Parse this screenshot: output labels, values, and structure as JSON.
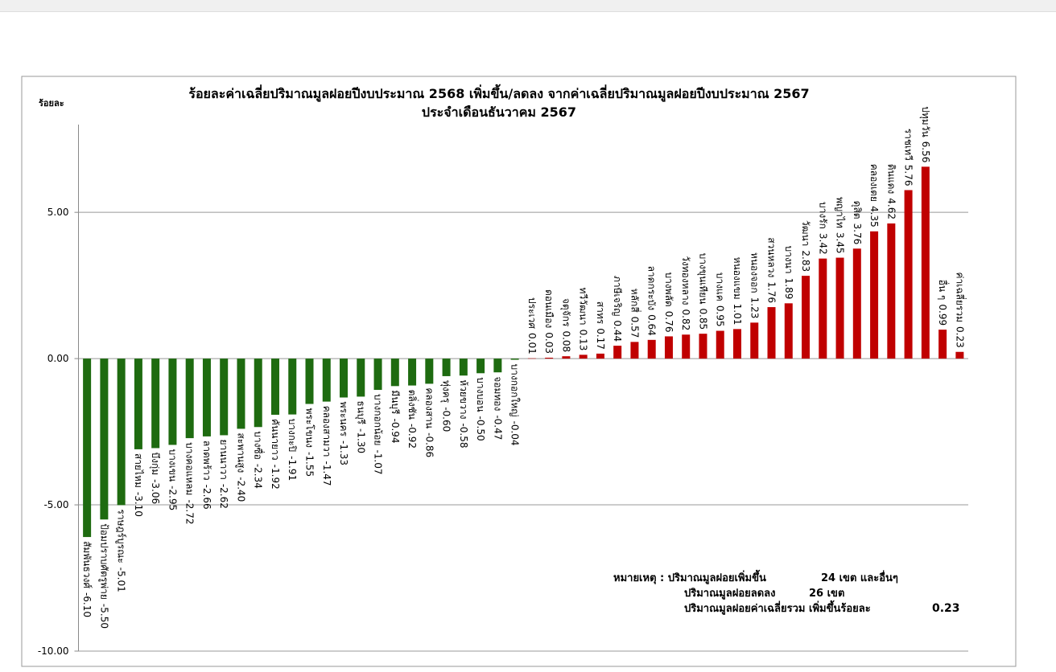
{
  "chart_data": {
    "type": "bar",
    "title": "ร้อยละค่าเฉลี่ยปริมาณมูลฝอยปีงบประมาณ 2568 เพิ่มขึ้น/ลดลง จากค่าเฉลี่ยปริมาณมูลฝอยปีงบประมาณ 2567",
    "subtitle": "ประจำเดือนธันวาคม 2567",
    "y_label": "ร้อยละ",
    "categories": [
      "สัมพันธวงศ์",
      "ป้อมปราบศัตรูพ่าย",
      "ราษฎร์บูรณะ",
      "สายไหม",
      "บึงกุ่ม",
      "บางเขน",
      "บางคอแหลม",
      "ลาดพร้าว",
      "ยานนาวา",
      "สะพานสูง",
      "บางซื่อ",
      "คันนายาว",
      "บางกะปิ",
      "พระโขนง",
      "คลองสามวา",
      "พระนคร",
      "ธนบุรี",
      "บางกอกน้อย",
      "มีนบุรี",
      "ตลิ่งชัน",
      "คลองสาน",
      "ทุ่งครุ",
      "ห้วยขวาง",
      "บางบอน",
      "จอมทอง",
      "บางกอกใหญ่",
      "ประเวศ",
      "ดอนเมือง",
      "จตุจักร",
      "ทวีวัฒนา",
      "สาทร",
      "ภาษีเจริญ",
      "หลักสี่",
      "ลาดกระบัง",
      "บางพลัด",
      "วังทองหลาง",
      "บางขุนเทียน",
      "บางแค",
      "หนองแขม",
      "หนองจอก",
      "สวนหลวง",
      "บางนา",
      "วัฒนา",
      "บางรัก",
      "พญาไท",
      "ดุสิต",
      "คลองเตย",
      "ดินแดง",
      "ราชเทวี",
      "ปทุมวัน",
      "อื่น ๆ",
      "ค่าเฉลี่ยรวม"
    ],
    "values": [
      -6.1,
      -5.5,
      -5.01,
      -3.1,
      -3.06,
      -2.95,
      -2.72,
      -2.66,
      -2.62,
      -2.4,
      -2.34,
      -1.92,
      -1.91,
      -1.55,
      -1.47,
      -1.33,
      -1.3,
      -1.07,
      -0.94,
      -0.92,
      -0.86,
      -0.6,
      -0.58,
      -0.5,
      -0.47,
      -0.04,
      0.01,
      0.03,
      0.08,
      0.13,
      0.17,
      0.44,
      0.57,
      0.64,
      0.76,
      0.82,
      0.85,
      0.95,
      1.01,
      1.23,
      1.76,
      1.89,
      2.83,
      3.42,
      3.45,
      3.76,
      4.35,
      4.62,
      5.76,
      6.56,
      0.99,
      0.23
    ],
    "value_labels": [
      "-6.10",
      "-5.50",
      "-5.01",
      "-3.10",
      "-3.06",
      "-2.95",
      "-2.72",
      "-2.66",
      "-2.62",
      "-2.40",
      "-2.34",
      "-1.92",
      "-1.91",
      "-1.55",
      "-1.47",
      "-1.33",
      "-1.30",
      "-1.07",
      "-0.94",
      "-0.92",
      "-0.86",
      "-0.60",
      "-0.58",
      "-0.50",
      "-0.47",
      "-0.04",
      "0.01",
      "0.03",
      "0.08",
      "0.13",
      "0.17",
      "0.44",
      "0.57",
      "0.64",
      "0.76",
      "0.82",
      "0.85",
      "0.95",
      "1.01",
      "1.23",
      "1.76",
      "1.89",
      "2.83",
      "3.42",
      "3.45",
      "3.76",
      "4.35",
      "4.62",
      "5.76",
      "6.56",
      "0.99",
      "0.23"
    ],
    "positive_color": "#c00000",
    "negative_color": "#1e6b10",
    "ylim": [
      -10,
      8
    ],
    "yticks": [
      {
        "value": -10,
        "label": "-10.00"
      },
      {
        "value": -5,
        "label": "-5.00"
      },
      {
        "value": 0,
        "label": "0.00"
      },
      {
        "value": 5,
        "label": "5.00"
      }
    ],
    "grid": true,
    "notes": [
      "หมายเหตุ : ปริมาณมูลฝอยเพิ่มขึ้น",
      "24 เขต และอื่นๆ",
      "ปริมาณมูลฝอยลดลง",
      "26 เขต",
      "ปริมาณมูลฝอยค่าเฉลี่ยรวม เพิ่มขึ้นร้อยละ",
      "0.23"
    ]
  }
}
